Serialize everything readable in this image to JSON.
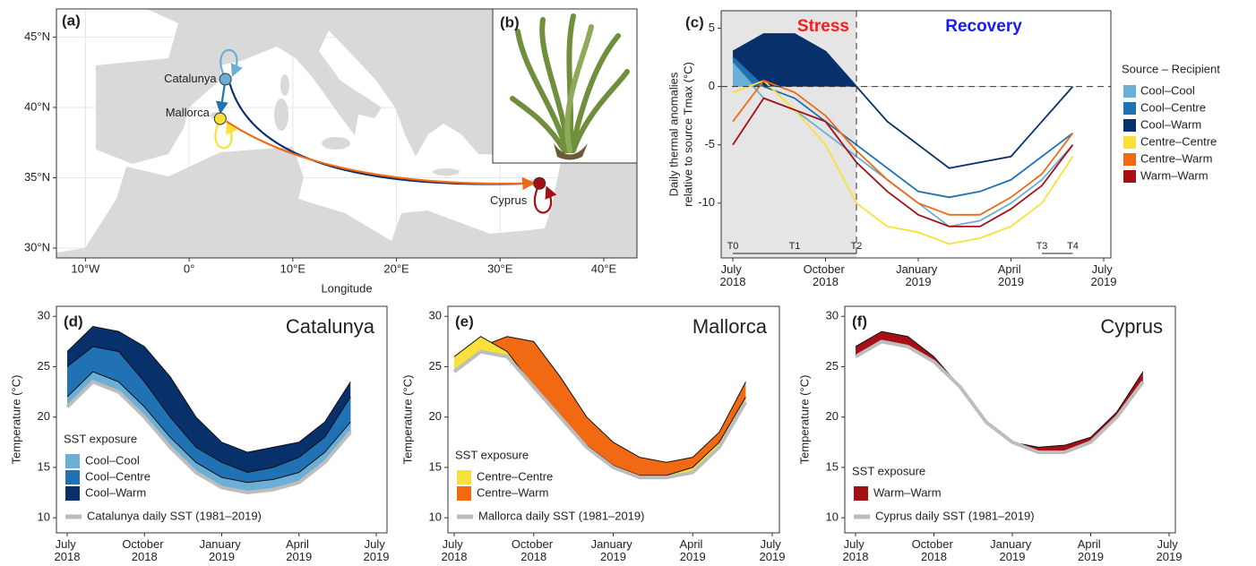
{
  "chart_data": [
    {
      "type": "map",
      "panel": "(a)",
      "xlabel": "Longitude",
      "xlim": [
        -12.8,
        43.2
      ],
      "ylim": [
        29.3,
        47
      ],
      "xticks": [
        {
          "value": -10,
          "label": "10°W"
        },
        {
          "value": 0,
          "label": "0°"
        },
        {
          "value": 10,
          "label": "10°E"
        },
        {
          "value": 20,
          "label": "20°E"
        },
        {
          "value": 30,
          "label": "30°E"
        },
        {
          "value": 40,
          "label": "40°E"
        }
      ],
      "yticks": [
        {
          "value": 30,
          "label": "30°N"
        },
        {
          "value": 35,
          "label": "35°N"
        },
        {
          "value": 40,
          "label": "40°N"
        },
        {
          "value": 45,
          "label": "45°N"
        }
      ],
      "grid": true,
      "land_color": "#d9d9d9",
      "sites": [
        {
          "name": "Catalunya",
          "lon": 3.5,
          "lat": 42,
          "color": "#6baed6"
        },
        {
          "name": "Mallorca",
          "lon": 3,
          "lat": 39.2,
          "color": "#f9e03b"
        },
        {
          "name": "Cyprus",
          "lon": 33.8,
          "lat": 34.6,
          "color": "#a50f15"
        }
      ]
    },
    {
      "type": "image",
      "panel": "(b)"
    },
    {
      "type": "line",
      "panel": "(c)",
      "ylabel": [
        "Daily thermal anomalies",
        "relative to source Tmax (°C)"
      ],
      "legend_title": "Source – Recipient",
      "stress_end": "2018-11",
      "annotations": [
        {
          "text": "Stress",
          "color": "#ff1a1a"
        },
        {
          "text": "Recovery",
          "color": "#1a1aff"
        }
      ],
      "periods": [
        {
          "label": "T0",
          "x": "2018-07"
        },
        {
          "label": "T1",
          "x": "2018-09"
        },
        {
          "label": "T2",
          "x": "2018-11"
        },
        {
          "label": "T3",
          "x": "2019-05"
        },
        {
          "label": "T4",
          "x": "2019-06"
        }
      ],
      "x": [
        "2018-07",
        "2018-08",
        "2018-09",
        "2018-10",
        "2018-11",
        "2018-12",
        "2019-01",
        "2019-02",
        "2019-03",
        "2019-04",
        "2019-05",
        "2019-06"
      ],
      "xlim": [
        "2018-07",
        "2019-07"
      ],
      "xticks": [
        {
          "value": "2018-07",
          "label": "July 2018"
        },
        {
          "value": "2018-10",
          "label": "October 2018"
        },
        {
          "value": "2019-01",
          "label": "January 2019"
        },
        {
          "value": "2019-04",
          "label": "April 2019"
        },
        {
          "value": "2019-07",
          "label": "July 2019"
        }
      ],
      "ylim": [
        -14.7,
        6.5
      ],
      "yticks": [
        -10,
        -5,
        0,
        5
      ],
      "series": [
        {
          "name": "Cool–Cool",
          "color": "#6baed6",
          "values": [
            2,
            -1,
            -2,
            -4,
            -6,
            -8,
            -10,
            -12,
            -11.5,
            -10,
            -8,
            -5
          ]
        },
        {
          "name": "Cool–Centre",
          "color": "#2171b5",
          "values": [
            2.5,
            0,
            -1,
            -3,
            -5,
            -7,
            -9,
            -9.5,
            -9,
            -8,
            -6,
            -4
          ]
        },
        {
          "name": "Cool–Warm",
          "color": "#08306b",
          "values": [
            3,
            4.5,
            4.5,
            3,
            0,
            -3,
            -5,
            -7,
            -6.5,
            -6,
            -3,
            0
          ]
        },
        {
          "name": "Centre–Centre",
          "color": "#f9e03b",
          "values": [
            -0.5,
            0.5,
            -2,
            -5,
            -10,
            -12,
            -12.5,
            -13.5,
            -13,
            -12,
            -10,
            -6
          ]
        },
        {
          "name": "Centre–Warm",
          "color": "#f16913",
          "values": [
            -3,
            0.5,
            -0.5,
            -2.5,
            -5.5,
            -8,
            -10,
            -11,
            -11,
            -9.5,
            -7.5,
            -4
          ]
        },
        {
          "name": "Warm–Warm",
          "color": "#a50f15",
          "values": [
            -5,
            -1,
            -2,
            -3,
            -6.5,
            -9,
            -11,
            -12,
            -12,
            -10.5,
            -8.5,
            -5
          ]
        }
      ]
    },
    {
      "type": "area",
      "panel": "(d)",
      "title": "Catalunya",
      "ylabel": "Temperature (°C)",
      "legend_title": "SST exposure",
      "x": [
        "2018-07",
        "2018-08",
        "2018-09",
        "2018-10",
        "2018-11",
        "2018-12",
        "2019-01",
        "2019-02",
        "2019-03",
        "2019-04",
        "2019-05",
        "2019-06"
      ],
      "xlim": [
        "2018-07",
        "2019-07"
      ],
      "xticks": [
        {
          "value": "2018-07",
          "label": "July 2018"
        },
        {
          "value": "2018-10",
          "label": "October 2018"
        },
        {
          "value": "2019-01",
          "label": "January 2019"
        },
        {
          "value": "2019-04",
          "label": "April 2019"
        },
        {
          "value": "2019-07",
          "label": "July 2019"
        }
      ],
      "ylim": [
        8.5,
        31
      ],
      "yticks": [
        10,
        15,
        20,
        25,
        30
      ],
      "baseline": {
        "name": "Catalunya daily SST (1981–2019)",
        "color": "#bdbdbd",
        "values": [
          21,
          23.5,
          22.5,
          20,
          17,
          14.5,
          13,
          12.5,
          12.8,
          13.5,
          15.5,
          18.5
        ]
      },
      "series": [
        {
          "name": "Cool–Cool",
          "color": "#6baed6",
          "values": [
            22,
            24.5,
            23.5,
            21,
            18,
            15.5,
            14,
            13.5,
            13.8,
            14.5,
            16.5,
            19.5
          ]
        },
        {
          "name": "Cool–Centre",
          "color": "#2171b5",
          "values": [
            25,
            27,
            26.5,
            23.5,
            20,
            17,
            15.5,
            14.5,
            15,
            16,
            18,
            22
          ]
        },
        {
          "name": "Cool–Warm",
          "color": "#08306b",
          "values": [
            26.5,
            29,
            28.5,
            27,
            24,
            20,
            17.5,
            16.5,
            17,
            17.5,
            19.5,
            23.5
          ]
        }
      ]
    },
    {
      "type": "area",
      "panel": "(e)",
      "title": "Mallorca",
      "ylabel": "Temperature (°C)",
      "legend_title": "SST exposure",
      "x": [
        "2018-07",
        "2018-08",
        "2018-09",
        "2018-10",
        "2018-11",
        "2018-12",
        "2019-01",
        "2019-02",
        "2019-03",
        "2019-04",
        "2019-05",
        "2019-06"
      ],
      "xlim": [
        "2018-07",
        "2019-07"
      ],
      "xticks": [
        {
          "value": "2018-07",
          "label": "July 2018"
        },
        {
          "value": "2018-10",
          "label": "October 2018"
        },
        {
          "value": "2019-01",
          "label": "January 2019"
        },
        {
          "value": "2019-04",
          "label": "April 2019"
        },
        {
          "value": "2019-07",
          "label": "July 2019"
        }
      ],
      "ylim": [
        8.5,
        31
      ],
      "yticks": [
        10,
        15,
        20,
        25,
        30
      ],
      "baseline": {
        "name": "Mallorca daily SST (1981–2019)",
        "color": "#bdbdbd",
        "values": [
          24.5,
          26.5,
          26,
          23,
          20,
          17,
          15,
          14,
          14,
          14.5,
          17,
          21.5
        ]
      },
      "series": [
        {
          "name": "Centre–Centre",
          "color": "#f9e03b",
          "values": [
            26,
            28,
            26.5,
            23,
            20,
            17.2,
            15.2,
            14.2,
            14.2,
            15,
            17.5,
            22
          ]
        },
        {
          "name": "Centre–Warm",
          "color": "#f16913",
          "values": [
            25,
            27,
            28,
            27.5,
            24,
            20,
            17.5,
            16,
            15.5,
            16,
            18.5,
            23.5
          ]
        }
      ]
    },
    {
      "type": "area",
      "panel": "(f)",
      "title": "Cyprus",
      "ylabel": "Temperature (°C)",
      "legend_title": "SST exposure",
      "x": [
        "2018-07",
        "2018-08",
        "2018-09",
        "2018-10",
        "2018-11",
        "2018-12",
        "2019-01",
        "2019-02",
        "2019-03",
        "2019-04",
        "2019-05",
        "2019-06"
      ],
      "xlim": [
        "2018-07",
        "2019-07"
      ],
      "xticks": [
        {
          "value": "2018-07",
          "label": "July 2018"
        },
        {
          "value": "2018-10",
          "label": "October 2018"
        },
        {
          "value": "2019-01",
          "label": "January 2019"
        },
        {
          "value": "2019-04",
          "label": "April 2019"
        },
        {
          "value": "2019-07",
          "label": "July 2019"
        }
      ],
      "ylim": [
        8.5,
        31
      ],
      "yticks": [
        10,
        15,
        20,
        25,
        30
      ],
      "baseline": {
        "name": "Cyprus daily SST (1981–2019)",
        "color": "#bdbdbd",
        "values": [
          26,
          27.5,
          27,
          25.5,
          23,
          19.5,
          17.5,
          16.5,
          16.5,
          17.5,
          20,
          23.5
        ]
      },
      "series": [
        {
          "name": "Warm–Warm",
          "color": "#a50f15",
          "values": [
            27,
            28.5,
            28,
            26,
            23,
            19.5,
            17.5,
            17,
            17.2,
            18,
            20.5,
            24.5
          ]
        }
      ]
    }
  ]
}
